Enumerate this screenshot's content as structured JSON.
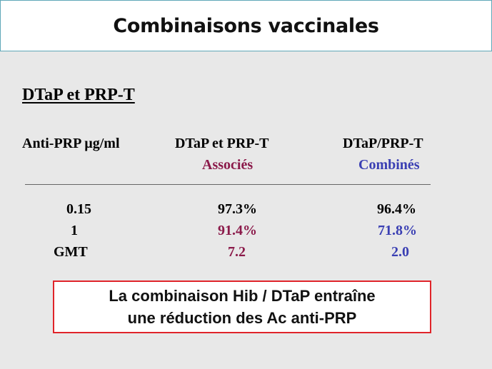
{
  "title": "Combinaisons vaccinales",
  "subtitle": "DTaP et PRP-T",
  "table": {
    "header": {
      "col1": "Anti-PRP µg/ml",
      "col2": "DTaP et PRP-T",
      "col2_sub": "Associés",
      "col3": "DTaP/PRP-T",
      "col3_sub": "Combinés"
    },
    "rows": [
      {
        "label": "0.15",
        "associes": "97.3%",
        "combines": "96.4%"
      },
      {
        "label": "1",
        "associes": "91.4%",
        "combines": "71.8%"
      },
      {
        "label": "GMT",
        "associes": "7.2",
        "combines": "2.0"
      }
    ]
  },
  "callout": {
    "line1": "La combinaison Hib / DTaP entraîne",
    "line2": "une réduction des Ac anti-PRP"
  },
  "colors": {
    "associes": "#8b1a4a",
    "combines": "#3a3fb3",
    "callout_border": "#e0242a"
  }
}
